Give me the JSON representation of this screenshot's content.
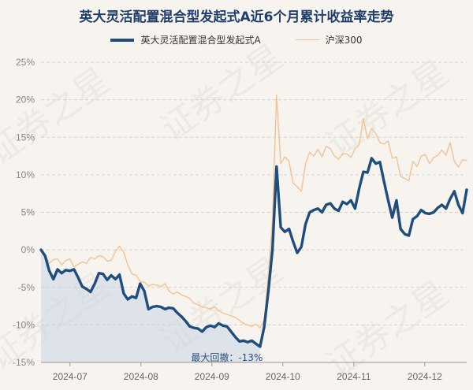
{
  "chart_data": {
    "type": "line",
    "title": "英大灵活配置混合型发起式A近6个月累计收益率走势",
    "x_tick_labels": [
      "2024-07",
      "2024-08",
      "2024-09",
      "2024-10",
      "2024-11",
      "2024-12"
    ],
    "y_ticks": [
      25,
      20,
      15,
      10,
      5,
      0,
      -5,
      -10,
      -15
    ],
    "y_tick_labels": [
      "25%",
      "20%",
      "15%",
      "10%",
      "5%",
      "0%",
      "-5%",
      "-10%",
      "-15%"
    ],
    "ylim": [
      -15,
      25
    ],
    "grid": "horizontal dashed",
    "legend_position": "top-center",
    "watermark": "证券之星",
    "annotation": {
      "label": "最大回撤：-13%",
      "value": -13
    },
    "series": [
      {
        "name": "英大灵活配置混合型发起式A",
        "color": "#1f4e7c",
        "values": [
          0,
          -0.8,
          -2.8,
          -3.9,
          -2.6,
          -3.1,
          -2.7,
          -2.8,
          -2.6,
          -3.7,
          -4.9,
          -5.2,
          -5.6,
          -4.5,
          -3.1,
          -3.2,
          -4.0,
          -3.4,
          -3.9,
          -3.3,
          -5.8,
          -6.6,
          -6.2,
          -6.4,
          -4.5,
          -5.5,
          -7.9,
          -7.6,
          -7.5,
          -7.6,
          -7.9,
          -7.7,
          -7.8,
          -8.4,
          -8.9,
          -9.5,
          -10.2,
          -10.4,
          -10.5,
          -10.9,
          -10.3,
          -10.1,
          -10.3,
          -9.8,
          -10.1,
          -10.2,
          -10.9,
          -11.6,
          -12.2,
          -12.1,
          -12.3,
          -12.1,
          -12.5,
          -12.9,
          -10.3,
          -5.6,
          0,
          11.1,
          3.0,
          2.4,
          2.8,
          1.1,
          -0.4,
          0.4,
          3.4,
          5.0,
          5.3,
          5.5,
          5.0,
          6.0,
          6.2,
          5.5,
          5.2,
          6.4,
          6.1,
          6.6,
          5.5,
          8.2,
          10.4,
          10.3,
          12.2,
          11.5,
          11.7,
          9.1,
          6.6,
          4.3,
          6.6,
          2.8,
          2.1,
          1.9,
          4.1,
          4.5,
          5.3,
          4.9,
          4.8,
          5.0,
          5.6,
          6.0,
          5.5,
          6.8,
          7.8,
          6.0,
          4.9,
          8.0
        ]
      },
      {
        "name": "沪深300",
        "color": "#f3c293",
        "values": [
          0,
          -0.6,
          -1.8,
          -1.3,
          -1.2,
          -2.0,
          -1.4,
          -1.2,
          -2.3,
          -1.9,
          -1.6,
          -1.8,
          -1.0,
          -1.2,
          -0.8,
          -0.9,
          -1.5,
          -1.4,
          -0.2,
          0.5,
          -0.3,
          -2.0,
          -3.2,
          -3.4,
          -4.2,
          -4.3,
          -4.8,
          -4.6,
          -4.7,
          -4.9,
          -4.5,
          -5.5,
          -5.9,
          -5.6,
          -6.0,
          -6.2,
          -6.5,
          -7.1,
          -7.3,
          -7.6,
          -7.7,
          -7.9,
          -7.6,
          -8.1,
          -8.4,
          -8.6,
          -8.8,
          -9.0,
          -9.4,
          -9.8,
          -10.0,
          -10.2,
          -9.9,
          -10.4,
          -9.4,
          -3.6,
          4.0,
          20.6,
          11.5,
          12.4,
          11.8,
          8.9,
          8.4,
          7.8,
          11.4,
          13.0,
          12.5,
          13.4,
          12.4,
          13.8,
          13.5,
          12.5,
          12.1,
          12.8,
          12.8,
          12.3,
          13.5,
          14.0,
          17.5,
          14.8,
          16.2,
          15.5,
          14.3,
          14.1,
          14.5,
          12.2,
          12.4,
          9.8,
          9.5,
          9.2,
          11.8,
          11.1,
          12.5,
          12.7,
          11.5,
          12.3,
          12.6,
          13.3,
          12.6,
          14.3,
          11.8,
          11.0,
          12.0,
          11.9
        ]
      }
    ]
  }
}
